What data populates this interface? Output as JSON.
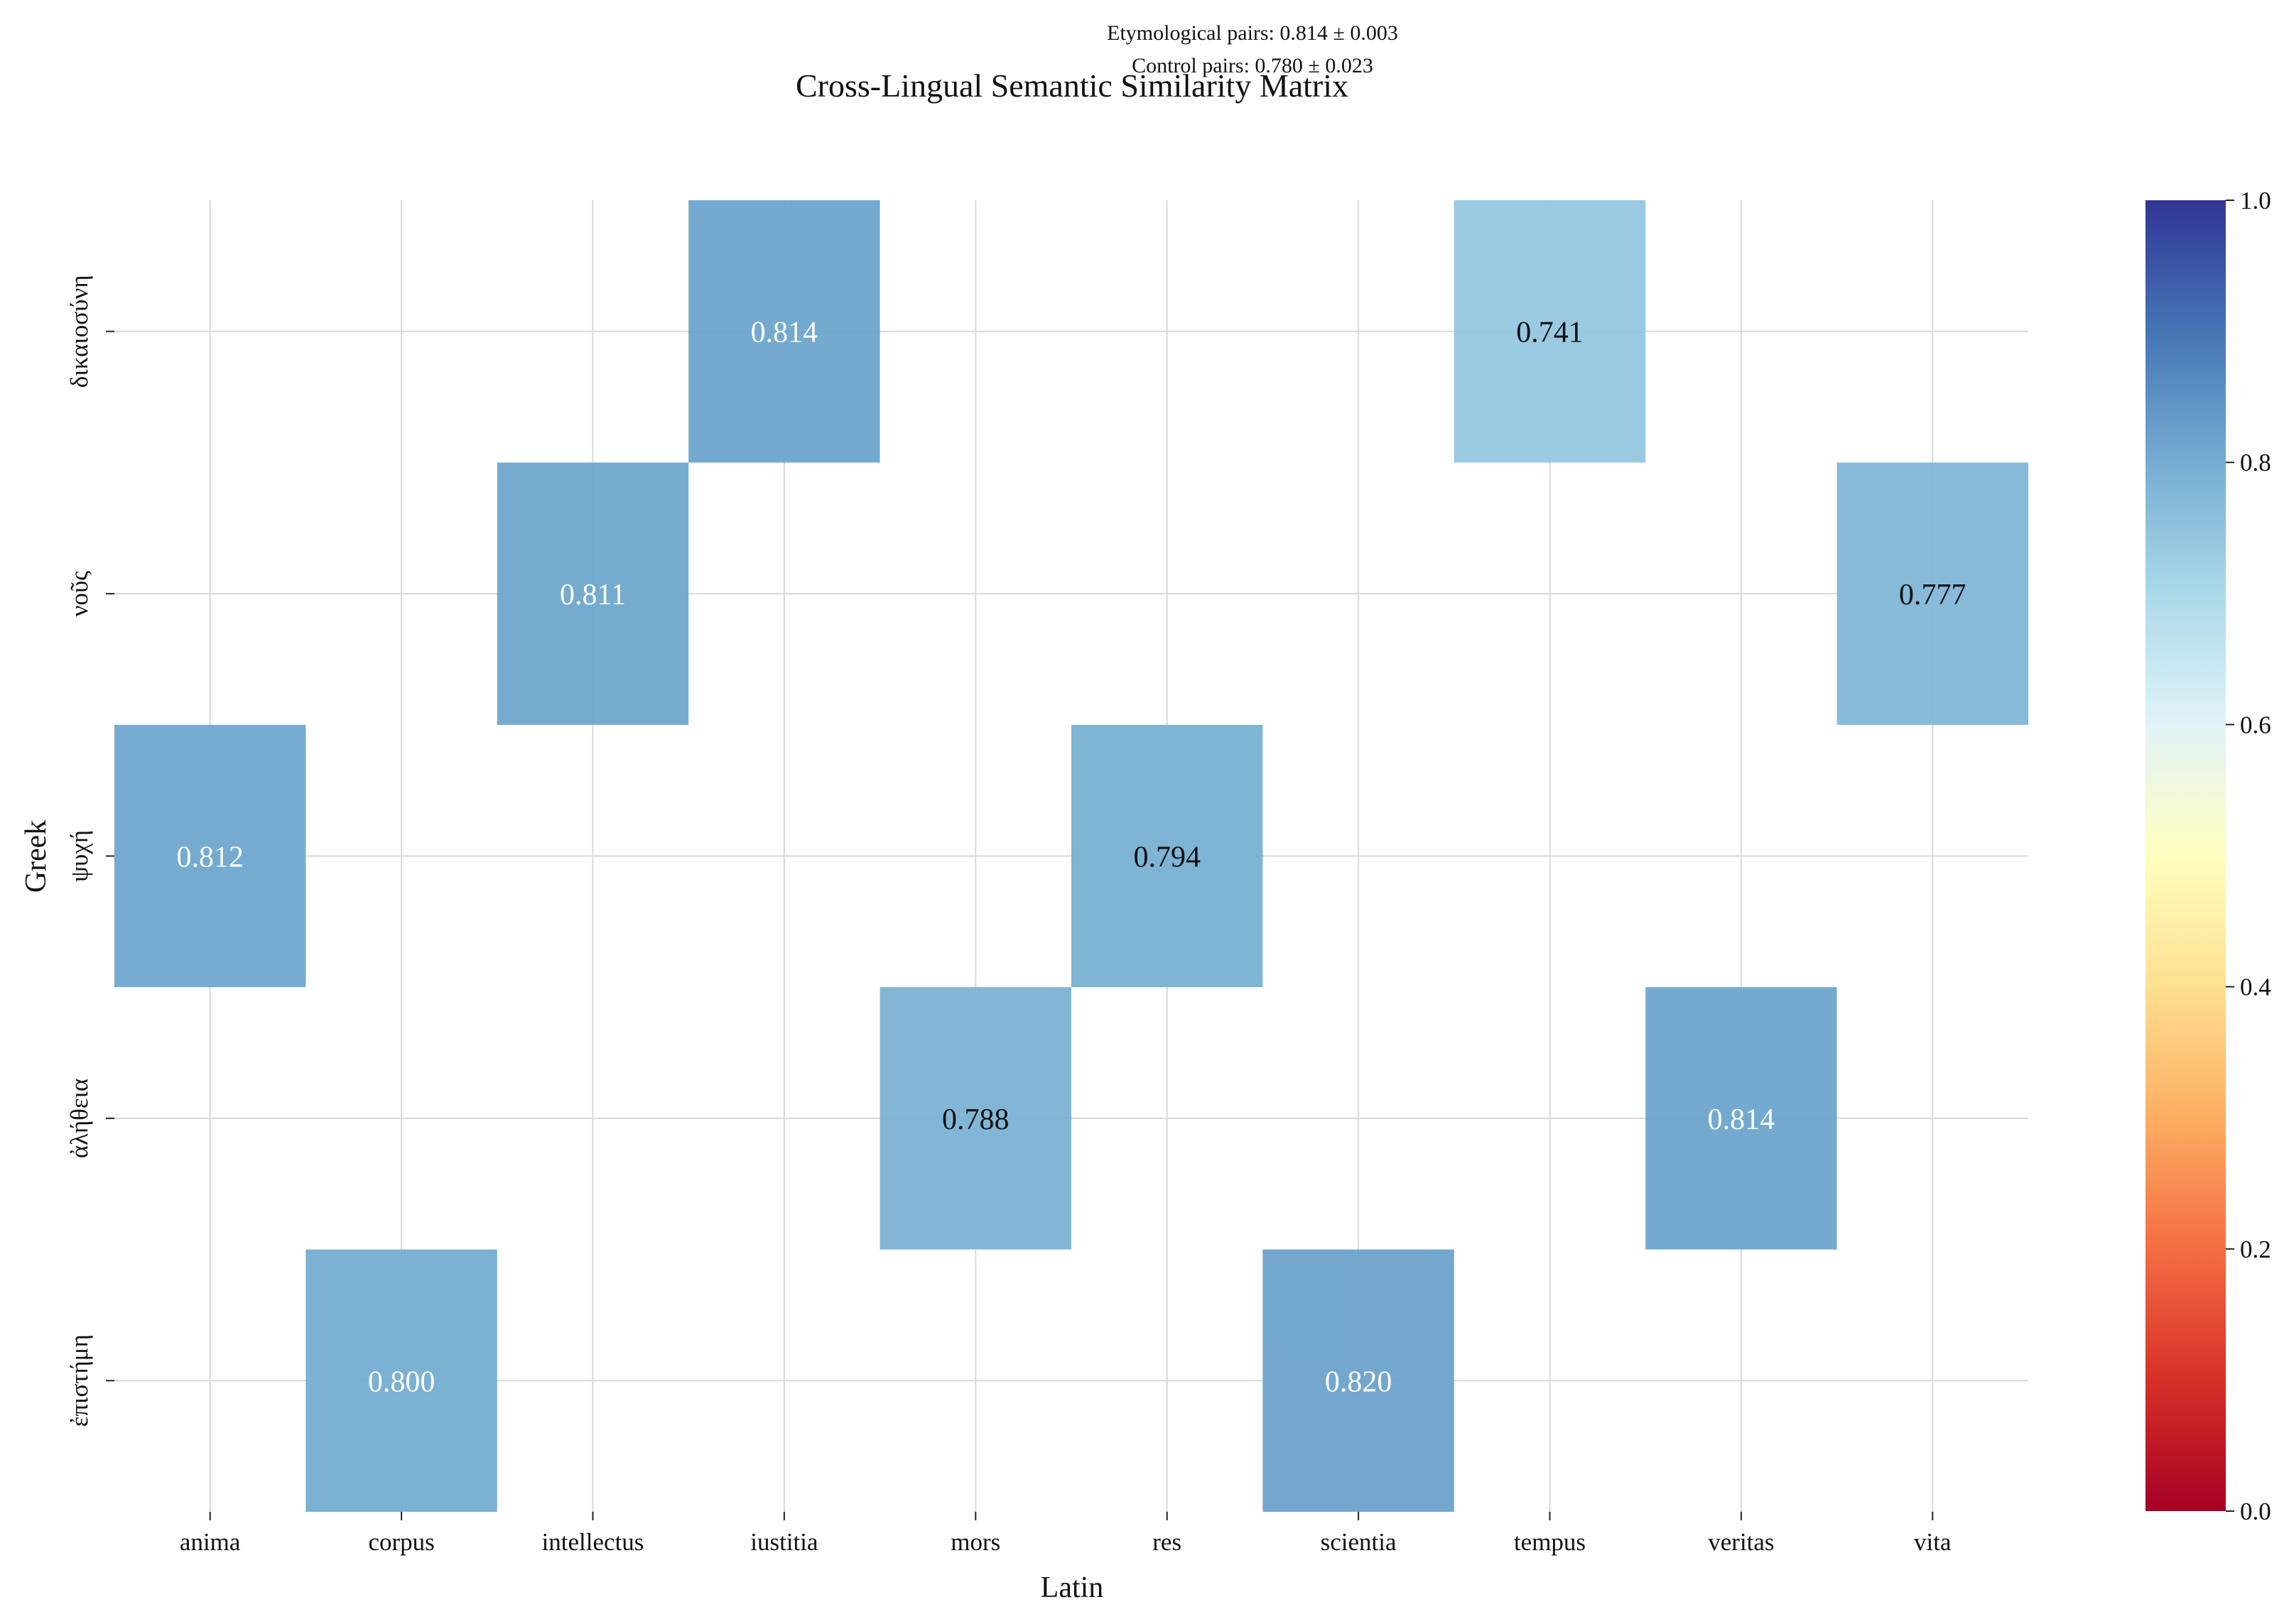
{
  "annotations": {
    "line1": "Etymological pairs: 0.814 ± 0.003",
    "line2": "Control pairs: 0.780 ± 0.023"
  },
  "chart_data": {
    "type": "heatmap",
    "title": "Cross-Lingual Semantic Similarity Matrix",
    "xlabel": "Latin",
    "ylabel": "Greek",
    "x_categories": [
      "anima",
      "corpus",
      "intellectus",
      "iustitia",
      "mors",
      "res",
      "scientia",
      "tempus",
      "veritas",
      "vita"
    ],
    "y_categories": [
      "δικαιοσύνη",
      "νοῦς",
      "ψυχή",
      "ἀλήθεια",
      "ἐπιστήμη"
    ],
    "cells": [
      {
        "y": "δικαιοσύνη",
        "x": "iustitia",
        "value": 0.814
      },
      {
        "y": "δικαιοσύνη",
        "x": "tempus",
        "value": 0.741
      },
      {
        "y": "νοῦς",
        "x": "intellectus",
        "value": 0.811
      },
      {
        "y": "νοῦς",
        "x": "vita",
        "value": 0.777
      },
      {
        "y": "ψυχή",
        "x": "anima",
        "value": 0.812
      },
      {
        "y": "ψυχή",
        "x": "res",
        "value": 0.794
      },
      {
        "y": "ἀλήθεια",
        "x": "mors",
        "value": 0.788
      },
      {
        "y": "ἀλήθεια",
        "x": "veritas",
        "value": 0.814
      },
      {
        "y": "ἐπιστήμη",
        "x": "corpus",
        "value": 0.8
      },
      {
        "y": "ἐπιστήμη",
        "x": "scientia",
        "value": 0.82
      }
    ],
    "colormap": "RdYlBu",
    "colorbar_range": [
      0,
      1
    ],
    "colorbar_ticks": [
      "0.0",
      "0.2",
      "0.4",
      "0.6",
      "0.8",
      "1.0"
    ],
    "grid": true
  }
}
